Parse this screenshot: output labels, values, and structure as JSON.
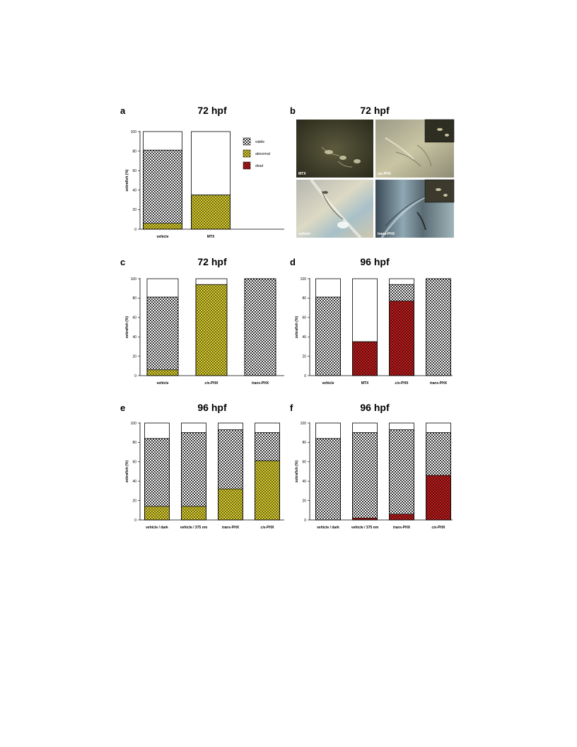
{
  "colors": {
    "abnormal": "#d9cc2e",
    "dead": "#c41d1d",
    "viable_light": "#ffffff",
    "viable_dark": "#333333"
  },
  "legend": [
    {
      "key": "viable",
      "label": "viable"
    },
    {
      "key": "abnormal",
      "label": "abnormal"
    },
    {
      "key": "dead",
      "label": "dead"
    }
  ],
  "panel_b": {
    "letter": "b",
    "title": "72 hpf",
    "photos": [
      {
        "label": "MTX"
      },
      {
        "label": "cis-PHX"
      },
      {
        "label": "vehicle"
      },
      {
        "label": "trans-PHX"
      }
    ]
  },
  "chart_data": [
    {
      "id": "a",
      "letter": "a",
      "title": "72 hpf",
      "type": "bar",
      "stacked": true,
      "ylabel": "zebrafish (%)",
      "ylim": [
        0,
        100
      ],
      "yticks": [
        0,
        20,
        40,
        60,
        80,
        100
      ],
      "categories": [
        "vehicle",
        "MTX"
      ],
      "segments": [
        [
          {
            "type": "abnormal",
            "value": 6
          },
          {
            "type": "viable",
            "value": 75
          }
        ],
        [
          {
            "type": "abnormal",
            "value": 35
          }
        ]
      ],
      "legend": "right"
    },
    {
      "id": "c",
      "letter": "c",
      "title": "72 hpf",
      "type": "bar",
      "stacked": true,
      "ylabel": "zebrafish (%)",
      "ylim": [
        0,
        100
      ],
      "yticks": [
        0,
        20,
        40,
        60,
        80,
        100
      ],
      "categories": [
        "vehicle",
        "cis-PHX",
        "trans-PHX"
      ],
      "segments": [
        [
          {
            "type": "abnormal",
            "value": 6
          },
          {
            "type": "viable",
            "value": 75
          }
        ],
        [
          {
            "type": "abnormal",
            "value": 94
          }
        ],
        [
          {
            "type": "viable",
            "value": 100
          }
        ]
      ]
    },
    {
      "id": "d",
      "letter": "d",
      "title": "96 hpf",
      "type": "bar",
      "stacked": true,
      "ylabel": "zebrafish (%)",
      "ylim": [
        0,
        100
      ],
      "yticks": [
        0,
        20,
        40,
        60,
        80,
        100
      ],
      "categories": [
        "vehicle",
        "MTX",
        "cis-PHX",
        "trans-PHX"
      ],
      "segments": [
        [
          {
            "type": "viable",
            "value": 81
          }
        ],
        [
          {
            "type": "dead",
            "value": 35
          }
        ],
        [
          {
            "type": "dead",
            "value": 77
          },
          {
            "type": "viable",
            "value": 17
          }
        ],
        [
          {
            "type": "viable",
            "value": 100
          }
        ]
      ]
    },
    {
      "id": "e",
      "letter": "e",
      "title": "96 hpf",
      "type": "bar",
      "stacked": true,
      "ylabel": "zebrafish (%)",
      "ylim": [
        0,
        100
      ],
      "yticks": [
        0,
        20,
        40,
        60,
        80,
        100
      ],
      "categories": [
        "vehicle / dark",
        "vehicle / 375 nm",
        "trans-PHX",
        "cis-PHX"
      ],
      "segments": [
        [
          {
            "type": "abnormal",
            "value": 14
          },
          {
            "type": "viable",
            "value": 70
          }
        ],
        [
          {
            "type": "abnormal",
            "value": 14
          },
          {
            "type": "viable",
            "value": 76
          }
        ],
        [
          {
            "type": "abnormal",
            "value": 32
          },
          {
            "type": "viable",
            "value": 61
          }
        ],
        [
          {
            "type": "abnormal",
            "value": 61
          },
          {
            "type": "viable",
            "value": 29
          }
        ]
      ]
    },
    {
      "id": "f",
      "letter": "f",
      "title": "96 hpf",
      "type": "bar",
      "stacked": true,
      "ylabel": "zebrafish (%)",
      "ylim": [
        0,
        100
      ],
      "yticks": [
        0,
        20,
        40,
        60,
        80,
        100
      ],
      "categories": [
        "vehicle / dark",
        "vehicle / 375 nm",
        "trans-PHX",
        "cis-PHX"
      ],
      "segments": [
        [
          {
            "type": "viable",
            "value": 84
          }
        ],
        [
          {
            "type": "dead",
            "value": 2
          },
          {
            "type": "viable",
            "value": 88
          }
        ],
        [
          {
            "type": "dead",
            "value": 6
          },
          {
            "type": "viable",
            "value": 87
          }
        ],
        [
          {
            "type": "dead",
            "value": 46
          },
          {
            "type": "viable",
            "value": 44
          }
        ]
      ]
    }
  ]
}
